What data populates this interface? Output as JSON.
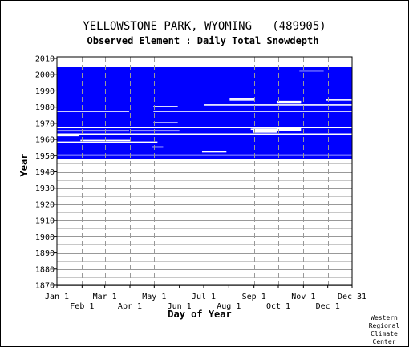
{
  "chart_data": {
    "type": "heatmap",
    "title": "YELLOWSTONE PARK, WYOMING   (489905)",
    "subtitle": "Observed Element : Daily Total Snowdepth",
    "xlabel": "Day of Year",
    "ylabel": "Year",
    "xlim": [
      1,
      365
    ],
    "ylim": [
      1870,
      2011
    ],
    "y_ticks": [
      1870,
      1880,
      1890,
      1900,
      1910,
      1920,
      1930,
      1940,
      1950,
      1960,
      1970,
      1980,
      1990,
      2000,
      2010
    ],
    "x_ticks_upper": [
      {
        "label": "Jan 1",
        "day": 1
      },
      {
        "label": "Mar 1",
        "day": 60
      },
      {
        "label": "May 1",
        "day": 121
      },
      {
        "label": "Jul 1",
        "day": 182
      },
      {
        "label": "Sep 1",
        "day": 244
      },
      {
        "label": "Nov 1",
        "day": 305
      },
      {
        "label": "Dec 31",
        "day": 365
      }
    ],
    "x_ticks_lower": [
      {
        "label": "Feb 1",
        "day": 32
      },
      {
        "label": "Apr 1",
        "day": 91
      },
      {
        "label": "Jun 1",
        "day": 152
      },
      {
        "label": "Aug 1",
        "day": 213
      },
      {
        "label": "Oct 1",
        "day": 274
      },
      {
        "label": "Dec 1",
        "day": 335
      }
    ],
    "data_coverage": {
      "year_start": 1948,
      "year_end": 2004,
      "color": "#0000ff"
    },
    "missing_rows": [
      {
        "year": 1950,
        "from": 1,
        "to": 365
      },
      {
        "year": 1952,
        "from": 180,
        "to": 210
      },
      {
        "year": 1955,
        "from": 118,
        "to": 132
      },
      {
        "year": 1958,
        "from": 1,
        "to": 125
      },
      {
        "year": 1959,
        "from": 30,
        "to": 92
      },
      {
        "year": 1962,
        "from": 1,
        "to": 28
      },
      {
        "year": 1963,
        "from": 1,
        "to": 365
      },
      {
        "year": 1965,
        "from": 1,
        "to": 90
      },
      {
        "year": 1965,
        "from": 92,
        "to": 152
      },
      {
        "year": 1966,
        "from": 240,
        "to": 300
      },
      {
        "year": 1967,
        "from": 1,
        "to": 365
      },
      {
        "year": 1970,
        "from": 120,
        "to": 150
      },
      {
        "year": 1977,
        "from": 1,
        "to": 90
      },
      {
        "year": 1977,
        "from": 120,
        "to": 365
      },
      {
        "year": 1980,
        "from": 120,
        "to": 150
      },
      {
        "year": 1981,
        "from": 182,
        "to": 365
      },
      {
        "year": 1983,
        "from": 272,
        "to": 302
      },
      {
        "year": 1984,
        "from": 214,
        "to": 245
      },
      {
        "year": 1984,
        "from": 333,
        "to": 365
      },
      {
        "year": 1985,
        "from": 214,
        "to": 245
      },
      {
        "year": 2002,
        "from": 300,
        "to": 330
      }
    ],
    "missing_blocks": [
      {
        "year_from": 1964,
        "year_to": 1966,
        "from": 243,
        "to": 272
      },
      {
        "year_from": 1965,
        "year_to": 1967,
        "from": 272,
        "to": 302
      },
      {
        "year_from": 1982,
        "year_to": 1983,
        "from": 272,
        "to": 302
      }
    ],
    "grid": true,
    "colors": {
      "present": "#0000ff",
      "missing": "#ffffff",
      "background": "#ffffff"
    }
  },
  "credit": [
    "Western",
    "Regional",
    "Climate",
    "Center"
  ]
}
